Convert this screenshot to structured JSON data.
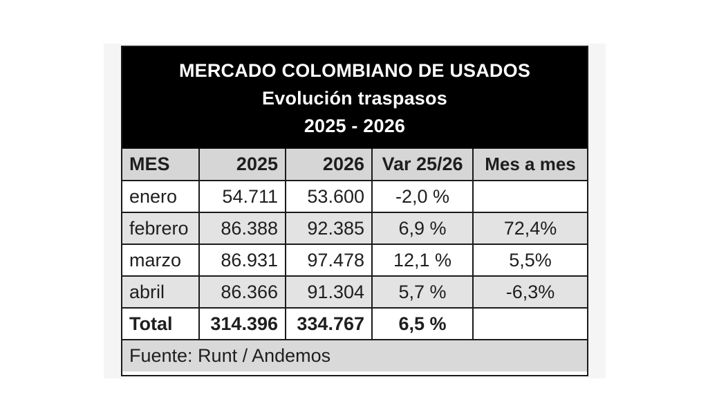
{
  "title": {
    "line1": "MERCADO COLOMBIANO DE USADOS",
    "line2": "Evolución traspasos",
    "line3": "2025 - 2026"
  },
  "headers": [
    "MES",
    "2025",
    "2026",
    "Var 25/26",
    "Mes a mes"
  ],
  "rows": [
    {
      "mes": "enero",
      "y2025": "54.711",
      "y2026": "53.600",
      "var": "-2,0 %",
      "mesames": ""
    },
    {
      "mes": "febrero",
      "y2025": "86.388",
      "y2026": "92.385",
      "var": "6,9 %",
      "mesames": "72,4%"
    },
    {
      "mes": "marzo",
      "y2025": "86.931",
      "y2026": "97.478",
      "var": "12,1 %",
      "mesames": "5,5%"
    },
    {
      "mes": "abril",
      "y2025": "86.366",
      "y2026": "91.304",
      "var": "5,7 %",
      "mesames": "-6,3%"
    }
  ],
  "total": {
    "mes": "Total",
    "y2025": "314.396",
    "y2026": "334.767",
    "var": "6,5 %",
    "mesames": ""
  },
  "source": "Fuente: Runt / Andemos"
}
